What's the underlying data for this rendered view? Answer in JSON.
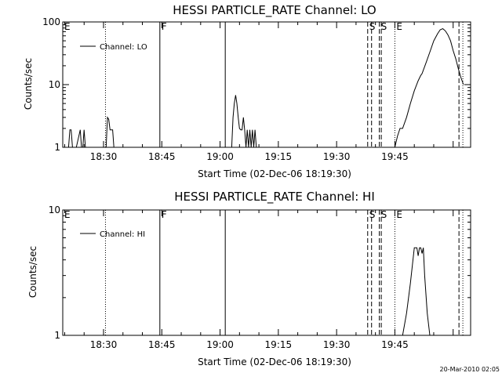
{
  "footer": {
    "timestamp": "20-Mar-2010 02:05"
  },
  "chart_data": [
    {
      "type": "line",
      "title": "HESSI PARTICLE_RATE Channel: LO",
      "xlabel": "Start Time (02-Dec-06 18:19:30)",
      "ylabel": "Counts/sec",
      "yscale": "log",
      "ylim": [
        1,
        100
      ],
      "xlim": [
        "18:19:30",
        "20:04:30"
      ],
      "grid": false,
      "legend_position": "top-left",
      "x_ticks": [
        "18:30",
        "18:45",
        "19:00",
        "19:15",
        "19:30",
        "19:45"
      ],
      "y_ticks": [
        "1",
        "10",
        "100"
      ],
      "series": [
        {
          "name": "Channel: LO",
          "color": "#000000",
          "x": [
            "18:21:00",
            "18:21:20",
            "18:21:40",
            "18:22:00",
            "18:23:00",
            "18:24:00",
            "18:24:20",
            "18:24:40",
            "18:25:00",
            "18:25:20",
            "18:25:40",
            "18:26:00",
            "18:26:20",
            "18:26:40",
            "18:30:40",
            "18:31:00",
            "18:31:20",
            "18:31:40",
            "18:32:00",
            "18:32:20",
            "18:32:40",
            "18:33:00",
            "19:03:00",
            "19:03:20",
            "19:03:40",
            "19:04:00",
            "19:04:20",
            "19:04:40",
            "19:05:00",
            "19:05:20",
            "19:05:40",
            "19:06:00",
            "19:06:20",
            "19:06:40",
            "19:07:00",
            "19:07:20",
            "19:07:40",
            "19:08:00",
            "19:08:20",
            "19:08:40",
            "19:09:00",
            "19:09:20",
            "19:09:40",
            "19:10:00",
            "19:45:00",
            "19:45:40",
            "19:46:20",
            "19:47:00",
            "19:48:00",
            "19:49:00",
            "19:50:00",
            "19:51:00",
            "19:51:40",
            "19:52:00",
            "19:53:00",
            "19:54:00",
            "19:55:00",
            "19:56:00",
            "19:56:40",
            "19:57:20",
            "19:58:00",
            "19:58:40",
            "19:59:20",
            "20:00:00",
            "20:00:40",
            "20:01:20",
            "20:02:00",
            "20:02:40"
          ],
          "y": [
            1.0,
            1.9,
            1.9,
            1.0,
            1.0,
            1.9,
            1.0,
            1.0,
            1.9,
            1.0,
            1.0,
            1.0,
            1.0,
            1.0,
            1.0,
            3.0,
            2.8,
            1.9,
            1.9,
            1.9,
            1.0,
            1.0,
            1.0,
            3.0,
            5.0,
            6.8,
            5.0,
            3.0,
            2.0,
            1.9,
            1.9,
            3.0,
            1.9,
            1.0,
            1.9,
            1.0,
            1.9,
            1.0,
            1.9,
            1.0,
            1.9,
            1.0,
            1.0,
            1.0,
            1.0,
            1.5,
            2.0,
            2.0,
            3.0,
            5.0,
            8.0,
            11.5,
            14.0,
            15.0,
            22.0,
            33.0,
            50.0,
            65.0,
            75.0,
            78.0,
            72.0,
            62.0,
            50.0,
            35.0,
            26.0,
            18.0,
            13.0,
            10.0
          ]
        }
      ],
      "markers": [
        {
          "time": "18:19:30",
          "label": "E",
          "style": "dotted"
        },
        {
          "time": "18:30:30",
          "label": "",
          "style": "dotted"
        },
        {
          "time": "18:44:30",
          "label": "F",
          "style": "solid"
        },
        {
          "time": "19:01:20",
          "label": "",
          "style": "solid"
        },
        {
          "time": "19:38:00",
          "label": "S",
          "style": "dashed"
        },
        {
          "time": "19:39:00",
          "label": "",
          "style": "dashed"
        },
        {
          "time": "19:41:00",
          "label": "S",
          "style": "dashed"
        },
        {
          "time": "19:41:30",
          "label": "",
          "style": "dashed"
        },
        {
          "time": "19:45:00",
          "label": "E",
          "style": "dotted"
        },
        {
          "time": "20:01:30",
          "label": "",
          "style": "dashed"
        },
        {
          "time": "20:02:30",
          "label": "",
          "style": "dotted"
        }
      ]
    },
    {
      "type": "line",
      "title": "HESSI PARTICLE_RATE Channel: HI",
      "xlabel": "Start Time (02-Dec-06 18:19:30)",
      "ylabel": "Counts/sec",
      "yscale": "log",
      "ylim": [
        1,
        10
      ],
      "xlim": [
        "18:19:30",
        "20:04:30"
      ],
      "grid": false,
      "legend_position": "top-left",
      "x_ticks": [
        "18:30",
        "18:45",
        "19:00",
        "19:15",
        "19:30",
        "19:45"
      ],
      "y_ticks": [
        "1",
        "10"
      ],
      "series": [
        {
          "name": "Channel: HI",
          "color": "#000000",
          "x": [
            "19:47:00",
            "19:48:00",
            "19:49:00",
            "19:50:00",
            "19:50:40",
            "19:51:00",
            "19:51:20",
            "19:51:40",
            "19:52:00",
            "19:52:20",
            "19:52:40",
            "19:53:20",
            "19:54:00"
          ],
          "y": [
            1.0,
            1.5,
            2.6,
            5.0,
            5.0,
            4.3,
            5.0,
            5.0,
            4.5,
            5.0,
            3.0,
            1.5,
            1.0
          ]
        }
      ],
      "markers": [
        {
          "time": "18:19:30",
          "label": "E",
          "style": "dotted"
        },
        {
          "time": "18:30:30",
          "label": "",
          "style": "dotted"
        },
        {
          "time": "18:44:30",
          "label": "F",
          "style": "solid"
        },
        {
          "time": "19:01:20",
          "label": "",
          "style": "solid"
        },
        {
          "time": "19:38:00",
          "label": "S",
          "style": "dashed"
        },
        {
          "time": "19:39:00",
          "label": "",
          "style": "dashed"
        },
        {
          "time": "19:41:00",
          "label": "S",
          "style": "dashed"
        },
        {
          "time": "19:41:30",
          "label": "",
          "style": "dashed"
        },
        {
          "time": "19:45:00",
          "label": "E",
          "style": "dotted"
        },
        {
          "time": "20:01:30",
          "label": "",
          "style": "dashed"
        },
        {
          "time": "20:02:30",
          "label": "",
          "style": "dotted"
        }
      ]
    }
  ]
}
